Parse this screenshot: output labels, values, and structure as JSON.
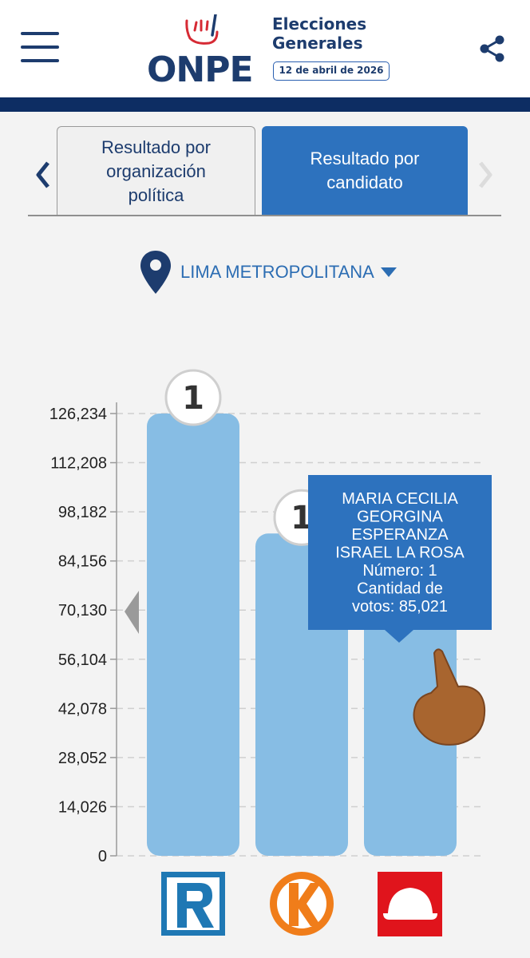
{
  "header": {
    "logo_text": "ONPE",
    "title_line1": "Elecciones",
    "title_line2": "Generales",
    "date": "12 de abril de 2026"
  },
  "tabs": [
    {
      "lines": [
        "Resultado por",
        "organización",
        "política"
      ],
      "active": false
    },
    {
      "lines": [
        "Resultado por",
        "candidato"
      ],
      "active": true
    }
  ],
  "region": {
    "label": "LIMA METROPOLITANA"
  },
  "chart_data": {
    "type": "bar",
    "y_ticks": [
      "0",
      "14,026",
      "28,052",
      "42,078",
      "56,104",
      "70,130",
      "84,156",
      "98,182",
      "112,208",
      "126,234"
    ],
    "ylim": [
      0,
      126234
    ],
    "values": [
      126234,
      92000,
      85021
    ],
    "rank_badges": [
      "1",
      "1",
      ""
    ],
    "category_logos": [
      "R-logo",
      "K-logo",
      "helmet-logo"
    ],
    "colors": {
      "bar": "#87bde4",
      "tooltip": "#2d72be",
      "grid": "#cfcfcf"
    },
    "grid": true,
    "tooltip": {
      "lines": [
        "MARIA CECILIA",
        "GEORGINA",
        "ESPERANZA",
        "ISRAEL LA ROSA",
        "Número: 1",
        "Cantidad de",
        "votos: 85,021"
      ],
      "bar_index": 2
    }
  }
}
